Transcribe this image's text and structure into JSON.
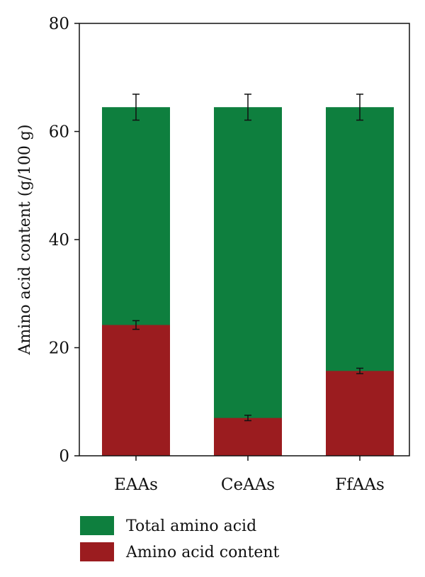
{
  "chart_data": {
    "type": "bar",
    "stacked": false,
    "overlapping": true,
    "categories": [
      "EAAs",
      "CeAAs",
      "FfAAs"
    ],
    "ylabel": "Amino acid content (g/100 g)",
    "xlabel": "",
    "title": "",
    "ylim": [
      0,
      80
    ],
    "yticks": [
      "0",
      "20",
      "40",
      "60",
      "80"
    ],
    "grid": false,
    "legend_position": "bottom",
    "series": [
      {
        "name": "Total amino acid",
        "color": "#0E7F3E",
        "values": [
          64.5,
          64.5,
          64.5
        ],
        "errors": [
          2.4,
          2.4,
          2.4
        ]
      },
      {
        "name": "Amino acid content",
        "color": "#9B1C1F",
        "values": [
          24.2,
          7.0,
          15.7
        ],
        "errors": [
          0.8,
          0.5,
          0.5
        ]
      }
    ]
  }
}
